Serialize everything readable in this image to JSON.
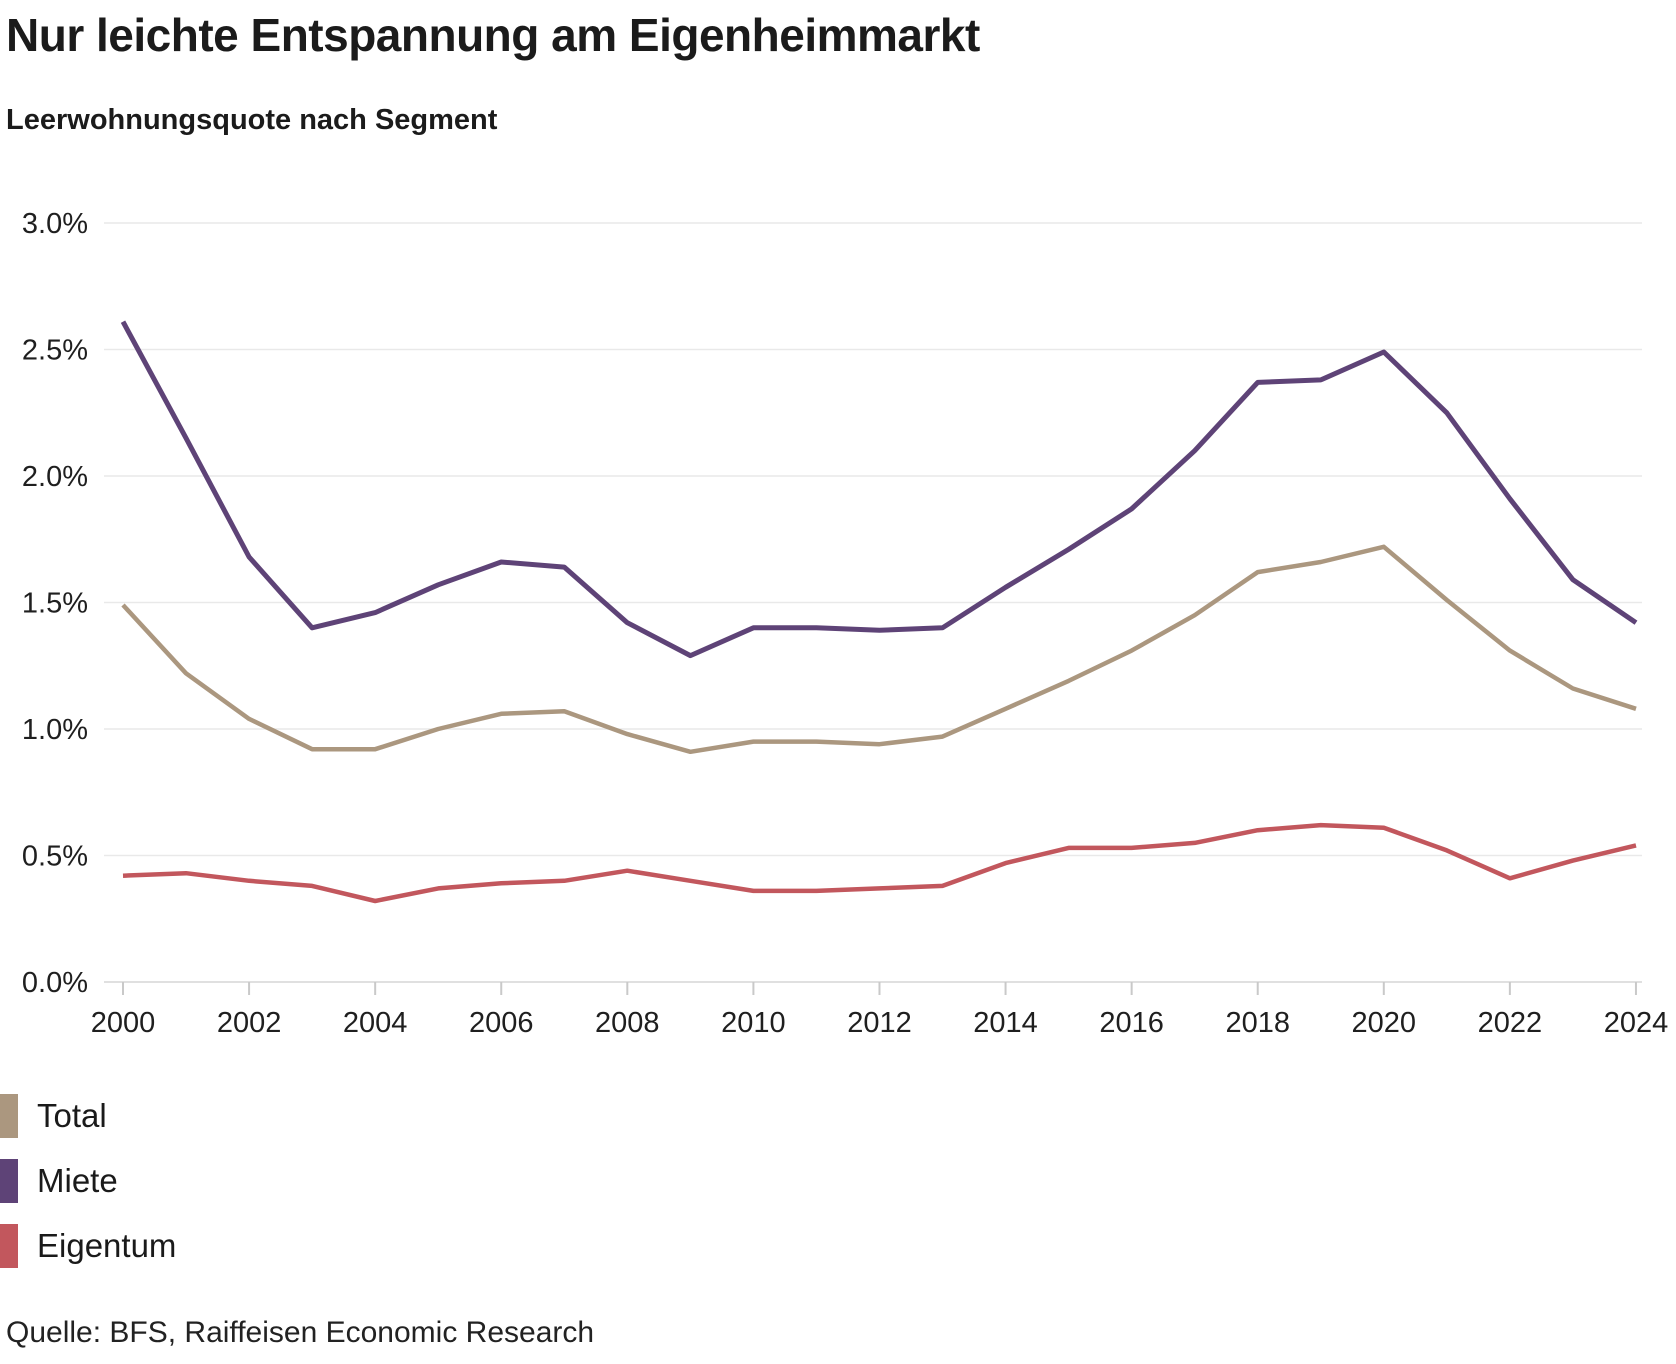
{
  "header": {
    "title": "Nur leichte Entspannung am Eigenheimmarkt",
    "subtitle": "Leerwohnungsquote nach Segment"
  },
  "chart_data": {
    "type": "line",
    "x": [
      2000,
      2001,
      2002,
      2003,
      2004,
      2005,
      2006,
      2007,
      2008,
      2009,
      2010,
      2011,
      2012,
      2013,
      2014,
      2015,
      2016,
      2017,
      2018,
      2019,
      2020,
      2021,
      2022,
      2023,
      2024
    ],
    "series": [
      {
        "name": "Total",
        "color": "#AB977F",
        "stroke_width": 4.5,
        "values": [
          1.49,
          1.22,
          1.04,
          0.92,
          0.92,
          1.0,
          1.06,
          1.07,
          0.98,
          0.91,
          0.95,
          0.95,
          0.94,
          0.97,
          1.08,
          1.19,
          1.31,
          1.45,
          1.62,
          1.66,
          1.72,
          1.51,
          1.31,
          1.16,
          1.08
        ]
      },
      {
        "name": "Miete",
        "color": "#5E4377",
        "stroke_width": 5,
        "values": [
          2.61,
          2.15,
          1.68,
          1.4,
          1.46,
          1.57,
          1.66,
          1.64,
          1.42,
          1.29,
          1.4,
          1.4,
          1.39,
          1.4,
          1.56,
          1.71,
          1.87,
          2.1,
          2.37,
          2.38,
          2.49,
          2.25,
          1.91,
          1.59,
          1.42
        ]
      },
      {
        "name": "Eigentum",
        "color": "#C2575D",
        "stroke_width": 4.5,
        "values": [
          0.42,
          0.43,
          0.4,
          0.38,
          0.32,
          0.37,
          0.39,
          0.4,
          0.44,
          0.4,
          0.36,
          0.36,
          0.37,
          0.38,
          0.47,
          0.53,
          0.53,
          0.55,
          0.6,
          0.62,
          0.61,
          0.52,
          0.41,
          0.48,
          0.54
        ]
      }
    ],
    "title": "Leerwohnungsquote nach Segment",
    "xlabel": "",
    "ylabel": "",
    "ylim": [
      0.0,
      3.0
    ],
    "ytick_step": 0.5,
    "ytick_labels": [
      "0.0%",
      "0.5%",
      "1.0%",
      "1.5%",
      "2.0%",
      "2.5%",
      "3.0%"
    ],
    "xtick_labels": [
      "2000",
      "2002",
      "2004",
      "2006",
      "2008",
      "2010",
      "2012",
      "2014",
      "2016",
      "2018",
      "2020",
      "2022",
      "2024"
    ],
    "grid": true,
    "legend_position": "bottom-left"
  },
  "source": "Quelle: BFS, Raiffeisen Economic Research",
  "colors": {
    "background": "#ffffff",
    "gridline": "#e9e9e9",
    "axis": "#d6d6d6",
    "text": "#1b1b1b"
  }
}
